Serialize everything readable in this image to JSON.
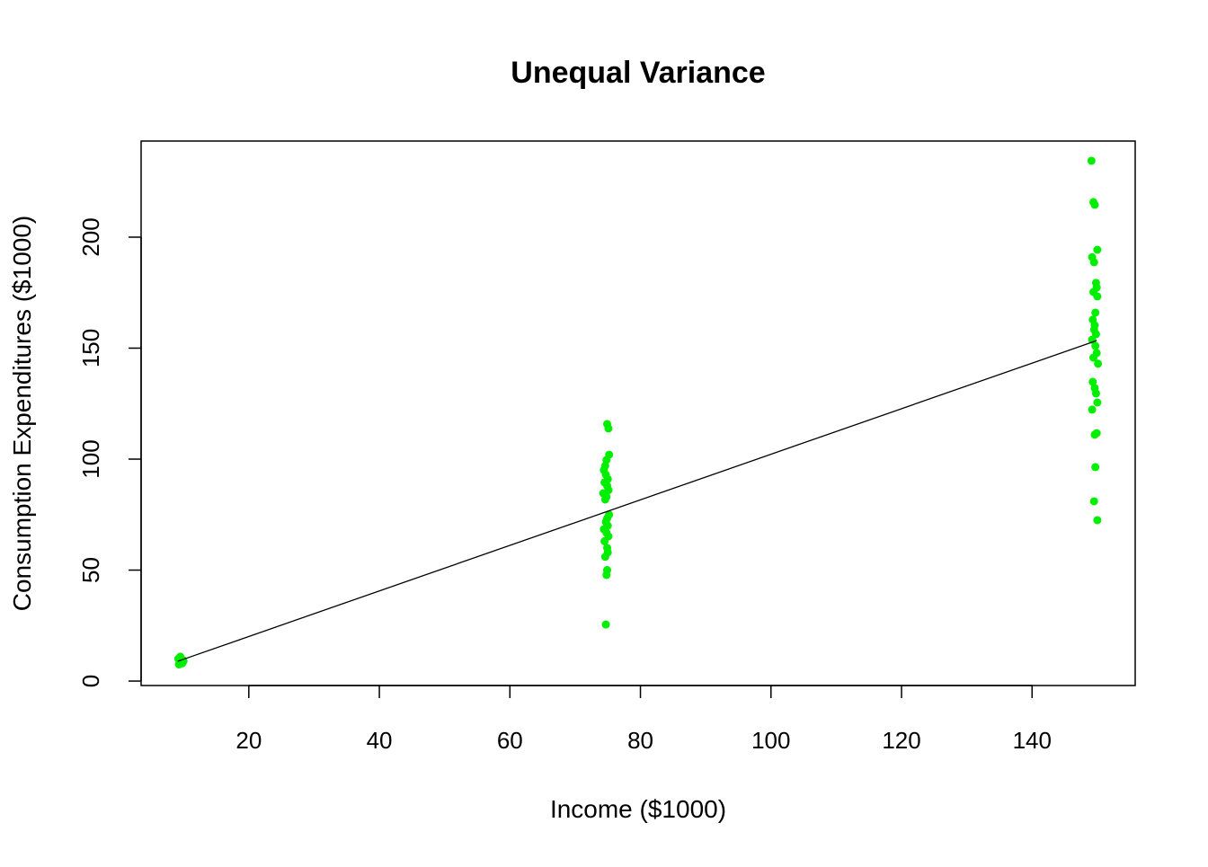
{
  "chart_data": {
    "type": "scatter",
    "title": "Unequal Variance",
    "xlabel": "Income ($1000)",
    "ylabel": "Consumption Expenditures ($1000)",
    "color": "#00ee00",
    "x": [
      9.3,
      9.6,
      9.9,
      9.4,
      9.8,
      9.5,
      10.0,
      9.2,
      74.9,
      75.1,
      75.2,
      74.8,
      74.6,
      74.4,
      74.7,
      75.0,
      74.5,
      74.9,
      75.1,
      74.3,
      74.8,
      74.6,
      75.2,
      74.9,
      74.7,
      75.0,
      74.4,
      74.8,
      75.1,
      74.5,
      74.9,
      75.0,
      74.6,
      74.9,
      74.8,
      74.7,
      149.1,
      149.4,
      149.6,
      150.0,
      149.2,
      149.5,
      149.8,
      149.9,
      149.4,
      150.0,
      149.7,
      149.3,
      149.6,
      149.5,
      149.8,
      149.2,
      149.7,
      149.9,
      149.4,
      150.1,
      149.3,
      149.6,
      149.8,
      150.0,
      149.2,
      149.9,
      149.6,
      149.7,
      149.5,
      150.0
    ],
    "y": [
      7.5,
      8.5,
      9.5,
      10.5,
      8.0,
      11.0,
      9.0,
      10.0,
      115.8,
      113.8,
      102,
      99.6,
      97,
      95,
      93,
      91,
      89.5,
      88,
      86,
      84.6,
      83,
      81.8,
      75,
      73.3,
      71.7,
      70,
      68.4,
      66.8,
      65.2,
      63,
      60,
      58,
      56,
      50,
      47.8,
      25.5,
      234.4,
      215.8,
      214.6,
      194.3,
      191,
      188.7,
      179.4,
      177.3,
      175.3,
      173.3,
      166,
      162.8,
      160.3,
      158.3,
      156.3,
      153.8,
      151,
      147.8,
      145.7,
      143,
      134.8,
      132,
      129.6,
      125.5,
      122.3,
      111.7,
      111,
      96.4,
      81,
      72.5
    ],
    "fit_line": {
      "x": [
        9.1,
        149.9
      ],
      "y": [
        8.9,
        153.4
      ],
      "color": "#000000"
    },
    "xlim": [
      3.5,
      155.8
    ],
    "ylim": [
      -2,
      243.3
    ],
    "xticks": [
      20,
      40,
      60,
      80,
      100,
      120,
      140
    ],
    "yticks": [
      0,
      50,
      100,
      150,
      200
    ]
  }
}
